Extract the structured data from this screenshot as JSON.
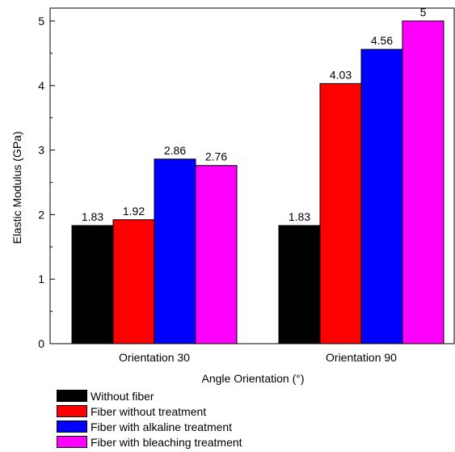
{
  "chart_data": {
    "type": "bar",
    "title": "",
    "xlabel": "Angle Orientation (°)",
    "ylabel": "Elastic Modulus (GPa)",
    "categories": [
      "Orientation 30",
      "Orientation 90"
    ],
    "ylim": [
      0,
      5.2
    ],
    "yticks": [
      0,
      1,
      2,
      3,
      4,
      5
    ],
    "grid": false,
    "legend_position": "bottom-left, below plot",
    "series": [
      {
        "name": "Without fiber",
        "color": "#000000",
        "values": [
          1.83,
          1.83
        ],
        "labels": [
          "1.83",
          "1.83"
        ]
      },
      {
        "name": "Fiber without treatment",
        "color": "#ff0000",
        "values": [
          1.92,
          4.03
        ],
        "labels": [
          "1.92",
          "4.03"
        ]
      },
      {
        "name": "Fiber with alkaline treatment",
        "color": "#0000ff",
        "values": [
          2.86,
          4.56
        ],
        "labels": [
          "2.86",
          "4.56"
        ]
      },
      {
        "name": "Fiber with bleaching treatment",
        "color": "#ff00ff",
        "values": [
          2.76,
          5.0
        ],
        "labels": [
          "2.76",
          "5"
        ]
      }
    ]
  }
}
